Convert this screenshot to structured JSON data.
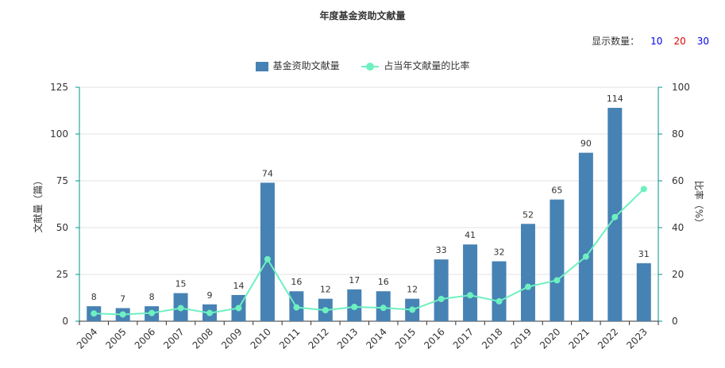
{
  "title": "年度基金资助文献量",
  "show_count": {
    "label": "显示数量：",
    "options": [
      "10",
      "20",
      "30"
    ]
  },
  "colors": {
    "bar": "#4682b4",
    "line": "#6ef0c0",
    "axis": "#009688",
    "grid": "#e0e0e0"
  },
  "chart_data": {
    "type": "bar",
    "title": "年度基金资助文献量",
    "categories": [
      "2004",
      "2005",
      "2006",
      "2007",
      "2008",
      "2009",
      "2010",
      "2011",
      "2012",
      "2013",
      "2014",
      "2015",
      "2016",
      "2017",
      "2018",
      "2019",
      "2020",
      "2021",
      "2022",
      "2023"
    ],
    "series": [
      {
        "name": "基金资助文献量",
        "type": "bar",
        "axis": "left",
        "values": [
          8,
          7,
          8,
          15,
          9,
          14,
          74,
          16,
          12,
          17,
          16,
          12,
          33,
          41,
          32,
          52,
          65,
          90,
          114,
          31
        ]
      },
      {
        "name": "占当年文献量的比率",
        "type": "line",
        "axis": "right",
        "values": [
          3.3,
          2.9,
          3.5,
          5.6,
          3.5,
          5.6,
          26.5,
          5.9,
          4.7,
          6.1,
          5.7,
          4.9,
          9.5,
          11.1,
          8.5,
          14.7,
          17.5,
          27.6,
          44.5,
          56.5
        ]
      }
    ],
    "ylabel_left": "文献量（篇）",
    "ylabel_right": "比率（%）",
    "ylim_left": [
      0,
      125
    ],
    "ylim_right": [
      0,
      100
    ],
    "yticks_left": [
      "0",
      "25",
      "50",
      "75",
      "100",
      "125"
    ],
    "yticks_right": [
      "0",
      "20",
      "40",
      "60",
      "80",
      "100"
    ],
    "grid": true,
    "legend_position": "top"
  }
}
